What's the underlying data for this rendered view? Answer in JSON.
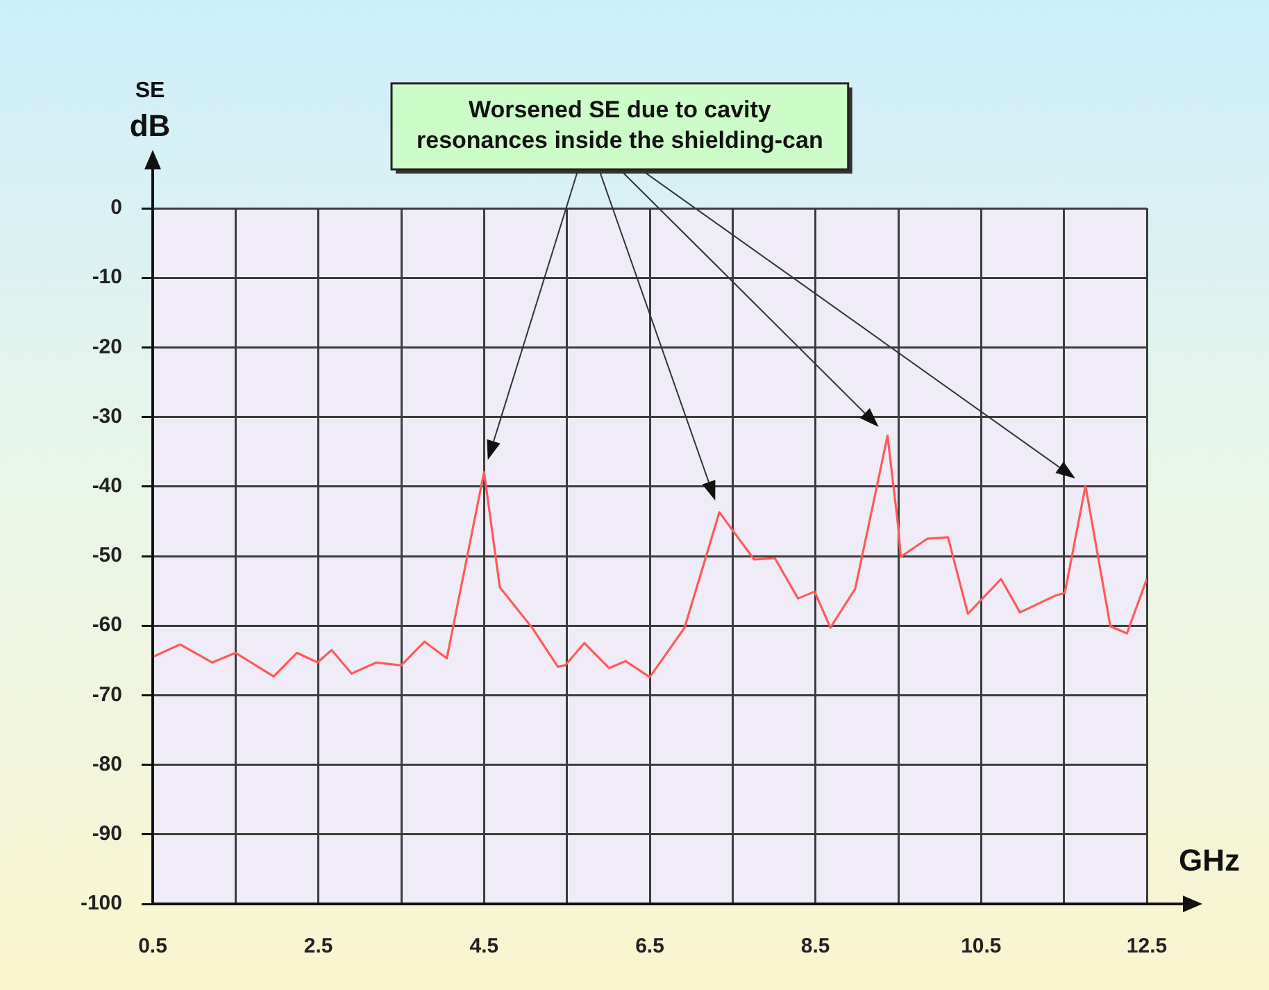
{
  "chart_data": {
    "type": "line",
    "ylabel": "SE\ndB",
    "xlabel": "GHz",
    "annotations": [
      "Worsened SE due to cavity\nresonances inside the shielding-can"
    ],
    "xlim": [
      0.5,
      12.5
    ],
    "ylim": [
      -100,
      0
    ],
    "xticks": [
      0.5,
      {
        "value": 1.5,
        "label": null
      },
      2.5,
      {
        "value": 3.5,
        "label": null
      },
      4.5,
      {
        "value": 5.5,
        "label": null
      },
      6.5,
      {
        "value": 7.5,
        "label": null
      },
      8.5,
      {
        "value": 9.5,
        "label": null
      },
      10.5,
      {
        "value": 11.5,
        "label": null
      },
      12.5
    ],
    "yticks": [
      -100,
      -90,
      -80,
      -70,
      -60,
      -50,
      -40,
      -30,
      -20,
      -10,
      0
    ],
    "grid": true,
    "legend": false,
    "marker": "none",
    "line_style": "solid",
    "series": [
      {
        "color": "#ff5a5a",
        "x": [
          0.5,
          0.83,
          1.22,
          1.5,
          1.96,
          2.24,
          2.49,
          2.66,
          2.9,
          3.2,
          3.5,
          3.78,
          4.05,
          4.5,
          4.69,
          5.08,
          5.39,
          5.48,
          5.71,
          6.01,
          6.21,
          6.5,
          6.92,
          7.34,
          7.76,
          8.01,
          8.29,
          8.49,
          8.68,
          8.98,
          9.37,
          9.5,
          9.53,
          9.85,
          10.1,
          10.34,
          10.74,
          10.97,
          11.39,
          11.51,
          11.76,
          12.06,
          12.26,
          12.5
        ],
        "values": [
          -64.5,
          -62.7,
          -65.3,
          -63.9,
          -67.3,
          -63.9,
          -65.3,
          -63.5,
          -66.9,
          -65.3,
          -65.7,
          -62.3,
          -64.7,
          -37.9,
          -54.5,
          -60.3,
          -65.9,
          -65.7,
          -62.5,
          -66.1,
          -65.1,
          -67.4,
          -60.3,
          -43.7,
          -50.5,
          -50.3,
          -56.1,
          -55.1,
          -60.3,
          -54.7,
          -32.7,
          -45.9,
          -50.1,
          -47.5,
          -47.3,
          -58.3,
          -53.3,
          -58.1,
          -55.7,
          -55.3,
          -39.9,
          -60.1,
          -61.1,
          -53.3
        ]
      }
    ]
  }
}
